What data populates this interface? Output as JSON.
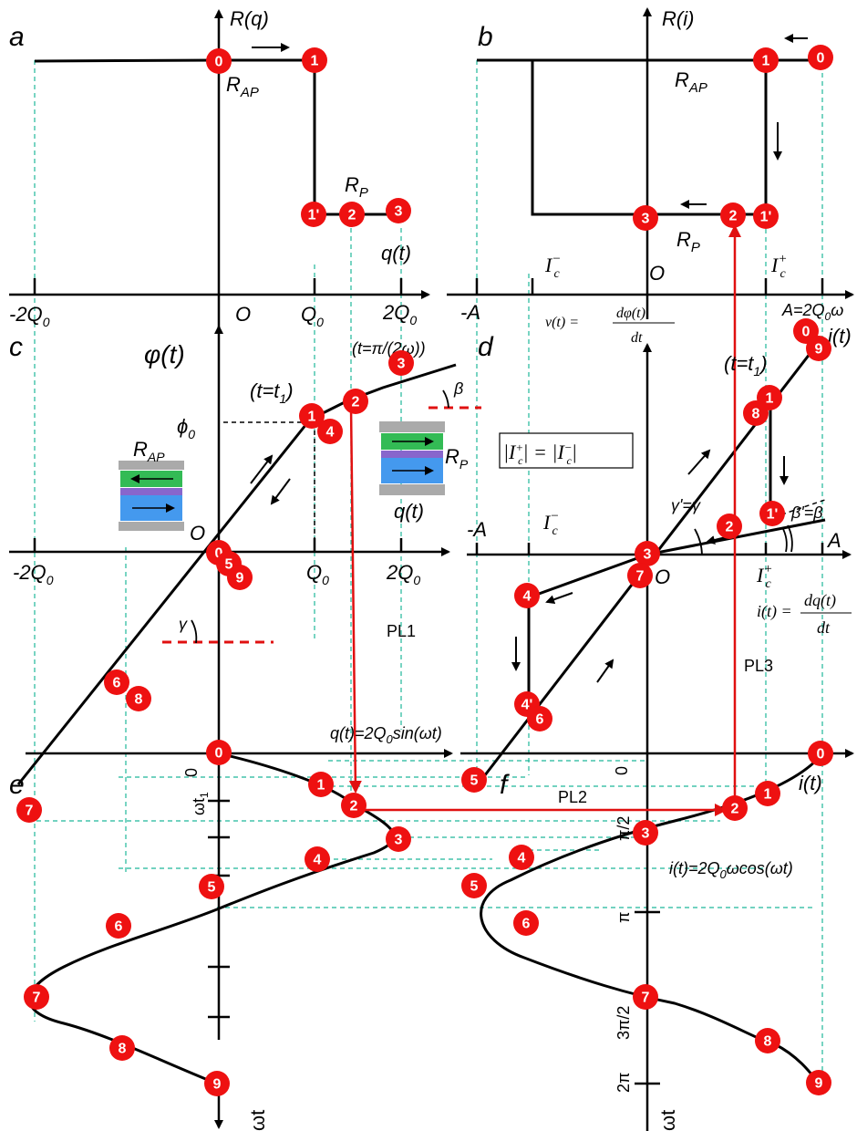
{
  "panels": {
    "a": "a",
    "b": "b",
    "c": "c",
    "d": "d",
    "e": "e",
    "f": "f"
  },
  "labels": {
    "R_q": "R(q)",
    "R_i": "R(i)",
    "R_AP": "R",
    "R_AP_sub": "AP",
    "R_P": "R",
    "R_P_sub": "P",
    "q_t": "q(t)",
    "i_t": "i(t)",
    "phi_t": "φ(t)",
    "O": "O",
    "neg2Q0": "-2Q",
    "Q0": "Q",
    "pos2Q0": "2Q",
    "sub0": "0",
    "negA": "-A",
    "A": "A",
    "A_eq": "A=2Q",
    "A_eq_tail": "ω",
    "Ic": "I",
    "Ic_minus": "−",
    "Ic_plus": "+",
    "Ic_sub": "c",
    "v_eq": "v(t) = dφ(t)/dt",
    "v_lhs": "v(t) =",
    "v_num": "dφ(t)",
    "v_den": "dt",
    "i_lhs": "i(t) =",
    "i_num": "dq(t)",
    "i_den": "dt",
    "t_pi": "(t=π/(2ω))",
    "t_t1": "(t=t",
    "t_t1_sub": "1",
    "t_t1_close": ")",
    "phi0": "ϕ",
    "phi0_sub": "0",
    "beta": "β",
    "gamma": "γ",
    "gamma_eq": "γ'=γ",
    "beta_eq": "β'=β",
    "Ic_eq": "|I",
    "PL1": "PL1",
    "PL2": "PL2",
    "PL3": "PL3",
    "q_eq": "q(t)=2Q",
    "q_eq_tail": "sin(ωt)",
    "i_eq": "i(t)=2Q",
    "i_eq_tail": "ωcos(ωt)",
    "wt": "ωt",
    "ticks_e": {
      "zero": "0",
      "wt1": "ωt",
      "wt1_sub": "1"
    },
    "ticks_f": {
      "zero": "0",
      "pi2": "π/2",
      "pi": "π",
      "pi32": "3π/2",
      "pi2x": "2π"
    }
  },
  "points": {
    "a": [
      "0",
      "1",
      "1'",
      "2",
      "3"
    ],
    "b": [
      "1",
      "0",
      "3",
      "2",
      "1'"
    ],
    "c": [
      "0",
      "5",
      "9",
      "1",
      "4",
      "2",
      "3",
      "6",
      "8",
      "7"
    ],
    "d": [
      "0",
      "9",
      "1",
      "8",
      "1'",
      "2",
      "3",
      "7",
      "4",
      "4'",
      "6",
      "5"
    ],
    "e": [
      "0",
      "1",
      "2",
      "3",
      "4",
      "5",
      "6",
      "7",
      "8",
      "9"
    ],
    "f": [
      "0",
      "1",
      "2",
      "3",
      "4",
      "5",
      "6",
      "7",
      "8",
      "9"
    ]
  },
  "colors": {
    "point": "#ee1111",
    "guide": "#1fb89a",
    "arrow": "#e01010",
    "ap_stripe": "#33bb55",
    "mid_stripe": "#8866cc",
    "p_stripe": "#4499ee"
  }
}
